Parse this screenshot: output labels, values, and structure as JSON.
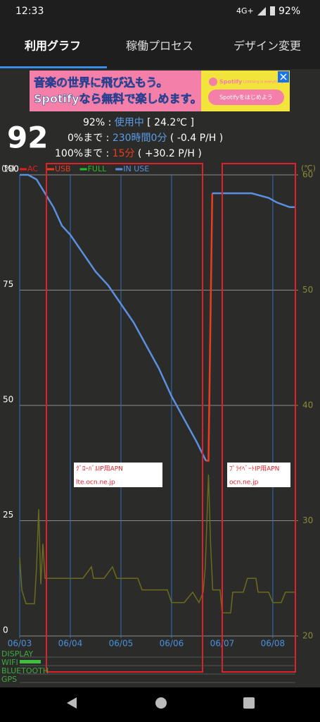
{
  "status_bar": {
    "time": "12:33",
    "network": "4G+",
    "battery": "92%"
  },
  "tabs": [
    "利用グラフ",
    "稼働プロセス",
    "デザイン変更"
  ],
  "ad": {
    "line1": "音楽の世界に飛び込もう。",
    "line2": "Spotifyなら無料で楽しめます。",
    "brand": "Spotify",
    "tagline": "Listening is everything",
    "button": "Spotifyをはじめよう"
  },
  "summary": {
    "level": "92",
    "line1": {
      "label": "92% : ",
      "status": "使用中",
      "detail": " [ 24.2℃ ]"
    },
    "line2": {
      "label": "0%まで : ",
      "status": "230時間0分",
      "detail": " ( -0.4 P/H )"
    },
    "line3": {
      "label": "100%まで : ",
      "status": "15分",
      "detail": " ( +30.2 P/H )"
    }
  },
  "chart_data": {
    "type": "line",
    "y_label": "(%)",
    "y2_label": "(℃)",
    "xlim": [
      0,
      130.7
    ],
    "ylim": [
      0,
      100
    ],
    "y2lim": [
      20,
      60
    ],
    "xticks": [
      {
        "value": 0,
        "label": "06/03"
      },
      {
        "value": 24,
        "label": "06/04"
      },
      {
        "value": 48,
        "label": "06/05"
      },
      {
        "value": 72,
        "label": "06/06"
      },
      {
        "value": 96,
        "label": "06/07"
      },
      {
        "value": 120,
        "label": "06/08"
      }
    ],
    "yticks": [
      0,
      25,
      50,
      75,
      100
    ],
    "y2ticks": [
      20,
      30,
      40,
      50,
      60
    ],
    "grid": true,
    "series": [
      {
        "name": "AC",
        "color": "#e02020",
        "x": [],
        "values": []
      },
      {
        "name": "USB",
        "color": "#f03a1e",
        "x": [
          88.3,
          89.5,
          91.3
        ],
        "values": [
          38,
          38,
          96
        ]
      },
      {
        "name": "FULL",
        "color": "#22c022",
        "x": [],
        "values": []
      },
      {
        "name": "IN USE",
        "color": "#5b8fe0",
        "x": [
          0,
          4,
          8,
          12,
          16,
          20,
          24,
          30,
          36,
          42,
          48,
          54,
          60,
          66,
          72,
          78,
          84,
          88.3,
          89.5,
          91.3,
          100,
          110,
          118,
          122,
          128,
          130.7
        ],
        "values": [
          100,
          100,
          99,
          96,
          93,
          89,
          87,
          83,
          79,
          76,
          72,
          68,
          63,
          58,
          52,
          47,
          42,
          38,
          null,
          96,
          96,
          96,
          95,
          94,
          93,
          93
        ]
      },
      {
        "color": "#6b6b1e",
        "axis": "y2",
        "x": [
          0,
          1,
          3,
          7,
          8,
          9,
          10,
          11,
          12,
          16,
          20,
          24,
          30,
          34,
          35,
          40,
          44,
          46,
          50,
          56,
          58,
          62,
          66,
          70,
          72,
          78,
          82,
          85,
          87,
          88,
          89.5,
          90.5,
          91.5,
          95,
          96,
          100,
          101,
          106,
          108,
          112,
          113,
          118,
          120,
          124,
          126,
          130.7
        ],
        "values": [
          26.8,
          24,
          22.8,
          22.8,
          26,
          31,
          24.5,
          28,
          25,
          25,
          25,
          25,
          25,
          26,
          25,
          25,
          26,
          25,
          25,
          25,
          24,
          24,
          24,
          24,
          22.9,
          22.9,
          23.8,
          22.9,
          23.8,
          26,
          34,
          28,
          24,
          24,
          22,
          22,
          23.8,
          23.8,
          25,
          25,
          23.8,
          23.8,
          22.9,
          22.9,
          23.8,
          23.8
        ]
      }
    ]
  },
  "status_rows": [
    "DISPLAY",
    "WIFI",
    "BLUETOOTH",
    "GPS"
  ],
  "annotations": [
    {
      "lines": [
        "ｸﾞﾛｰﾊﾞﾙIP用APN",
        "lte.ocn.ne.jp"
      ]
    },
    {
      "lines": [
        "ﾌﾟﾗｲﾍﾞｰﾄIP用APN",
        "ocn.ne.jp"
      ]
    }
  ]
}
